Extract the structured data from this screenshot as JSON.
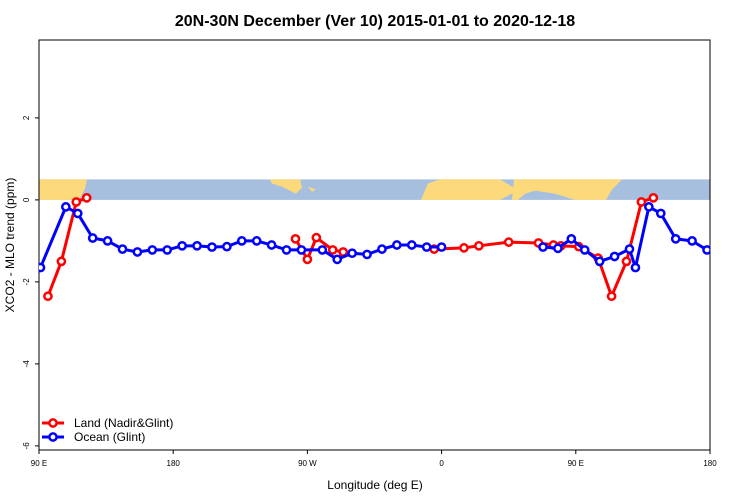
{
  "chart_data": {
    "type": "line",
    "title": "20N-30N December (Ver 10)   2015-01-01 to 2020-12-18",
    "xlabel": "Longitude (deg E)",
    "ylabel": "XCO2 - MLO trend (ppm)",
    "xlim": [
      90,
      540
    ],
    "ylim": [
      -6.1,
      3.9
    ],
    "x_ticks": [
      {
        "value": 90,
        "label": "90 E"
      },
      {
        "value": 180,
        "label": "180"
      },
      {
        "value": 270,
        "label": "90 W"
      },
      {
        "value": 360,
        "label": "0"
      },
      {
        "value": 450,
        "label": "90 E"
      },
      {
        "value": 540,
        "label": "180"
      }
    ],
    "y_ticks": [
      {
        "value": 2,
        "label": "2"
      },
      {
        "value": 0,
        "label": "0"
      },
      {
        "value": -2,
        "label": "-2"
      },
      {
        "value": -4,
        "label": "-4"
      },
      {
        "value": -6,
        "label": "-6"
      }
    ],
    "grid": false,
    "legend_position": "bottom-left",
    "map_strip_y_range": [
      0,
      0.5
    ],
    "series": [
      {
        "name": "Land (Nadir&Glint)",
        "color": "#ff0000",
        "segments": [
          [
            [
              96,
              -2.35
            ],
            [
              105,
              -1.5
            ],
            [
              115,
              -0.05
            ],
            [
              122,
              0.05
            ]
          ],
          [
            [
              262,
              -0.95
            ],
            [
              270,
              -1.45
            ],
            [
              276,
              -0.92
            ],
            [
              287,
              -1.22
            ],
            [
              294,
              -1.27
            ]
          ],
          [
            [
              355,
              -1.2
            ],
            [
              375,
              -1.17
            ],
            [
              385,
              -1.12
            ],
            [
              405,
              -1.03
            ],
            [
              425,
              -1.05
            ],
            [
              435,
              -1.1
            ],
            [
              440,
              -1.12
            ],
            [
              452,
              -1.14
            ],
            [
              465,
              -1.42
            ],
            [
              474,
              -2.35
            ],
            [
              484,
              -1.5
            ],
            [
              494,
              -0.05
            ],
            [
              502,
              0.05
            ]
          ]
        ]
      },
      {
        "name": "Ocean (Glint)",
        "color": "#0000ff",
        "segments": [
          [
            [
              91,
              -1.65
            ],
            [
              108,
              -0.17
            ],
            [
              116,
              -0.33
            ],
            [
              126,
              -0.93
            ],
            [
              136,
              -1.0
            ],
            [
              146,
              -1.2
            ],
            [
              156,
              -1.27
            ],
            [
              166,
              -1.22
            ],
            [
              176,
              -1.22
            ],
            [
              186,
              -1.12
            ],
            [
              196,
              -1.12
            ],
            [
              206,
              -1.15
            ],
            [
              216,
              -1.14
            ],
            [
              226,
              -1.0
            ],
            [
              236,
              -1.0
            ],
            [
              246,
              -1.1
            ],
            [
              256,
              -1.22
            ],
            [
              266,
              -1.22
            ],
            [
              280,
              -1.22
            ],
            [
              290,
              -1.45
            ],
            [
              300,
              -1.3
            ],
            [
              310,
              -1.33
            ],
            [
              320,
              -1.2
            ],
            [
              330,
              -1.1
            ],
            [
              340,
              -1.1
            ],
            [
              350,
              -1.15
            ],
            [
              360,
              -1.15
            ]
          ],
          [
            [
              428,
              -1.15
            ],
            [
              438,
              -1.18
            ],
            [
              447,
              -0.95
            ],
            [
              456,
              -1.22
            ],
            [
              466,
              -1.5
            ],
            [
              476,
              -1.38
            ],
            [
              486,
              -1.2
            ],
            [
              490,
              -1.65
            ],
            [
              499,
              -0.17
            ],
            [
              507,
              -0.33
            ],
            [
              517,
              -0.95
            ],
            [
              528,
              -1.0
            ],
            [
              538,
              -1.22
            ],
            [
              548,
              -1.27
            ],
            [
              558,
              -1.22
            ],
            [
              568,
              -1.22
            ]
          ]
        ]
      }
    ]
  }
}
